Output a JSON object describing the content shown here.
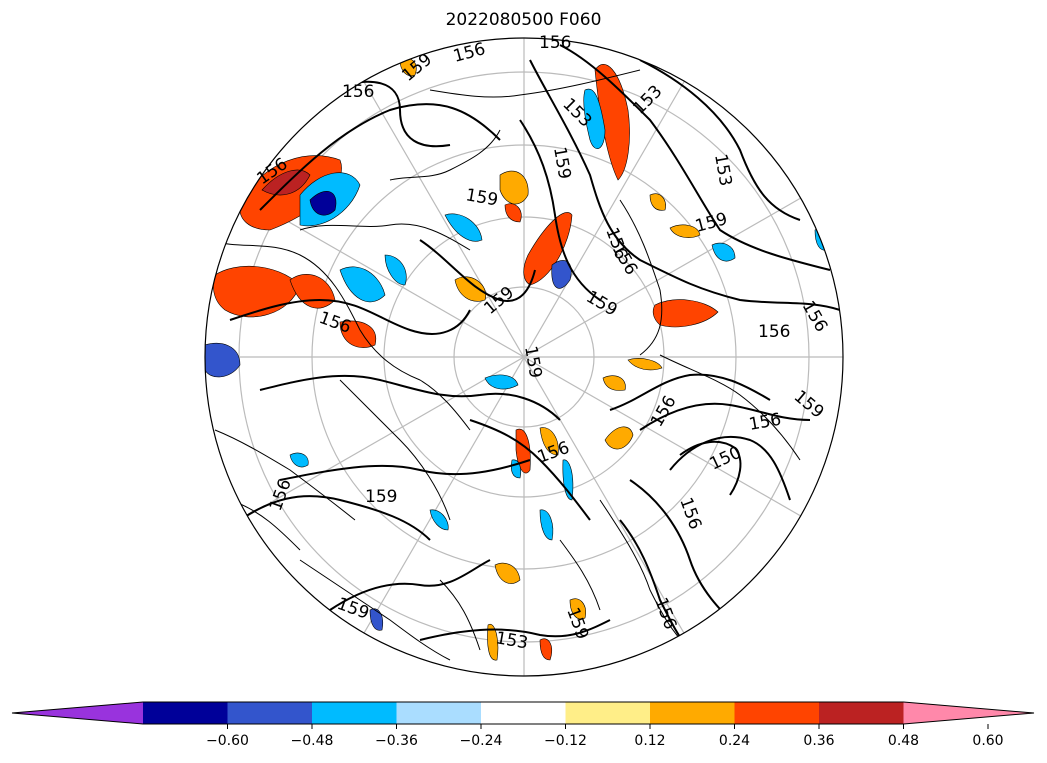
{
  "title": "2022080500 F060",
  "colorbar": {
    "colors": [
      "#9933dd",
      "#000099",
      "#3355cc",
      "#00bbff",
      "#aaddff",
      "#ffffff",
      "#ffee88",
      "#ffaa00",
      "#ff4400",
      "#bb2222",
      "#ff88aa"
    ],
    "ticks": [
      "−0.60",
      "−0.48",
      "−0.36",
      "−0.24",
      "−0.12",
      "0.12",
      "0.24",
      "0.36",
      "0.48",
      "0.60"
    ]
  },
  "contour_labels": [
    {
      "text": "156"
    },
    {
      "text": "159"
    },
    {
      "text": "156"
    },
    {
      "text": "156"
    },
    {
      "text": "153"
    },
    {
      "text": "153"
    },
    {
      "text": "156"
    },
    {
      "text": "159"
    },
    {
      "text": "153"
    },
    {
      "text": "159"
    },
    {
      "text": "159"
    },
    {
      "text": "156"
    },
    {
      "text": "159"
    },
    {
      "text": "156"
    },
    {
      "text": "159"
    },
    {
      "text": "156"
    },
    {
      "text": "159"
    },
    {
      "text": "156"
    },
    {
      "text": "159"
    },
    {
      "text": "156"
    },
    {
      "text": "150"
    },
    {
      "text": "156"
    },
    {
      "text": "159"
    },
    {
      "text": "156"
    },
    {
      "text": "159"
    },
    {
      "text": "153"
    },
    {
      "text": "156"
    },
    {
      "text": "156"
    },
    {
      "text": "156"
    },
    {
      "text": "159"
    },
    {
      "text": "156"
    }
  ]
}
